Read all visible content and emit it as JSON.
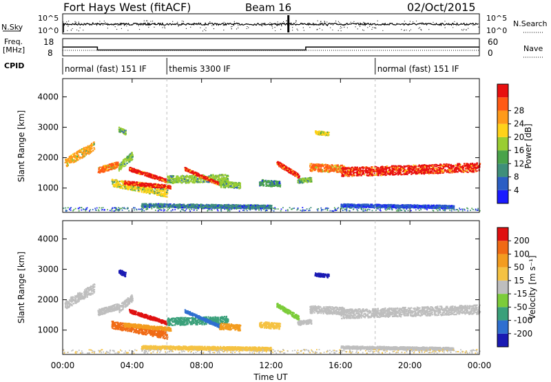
{
  "header": {
    "station": "Fort Hays West (fitACF)",
    "beam": "Beam 16",
    "date": "02/Oct/2015"
  },
  "top_panels": {
    "nsky_label": "N.Sky",
    "nsky_ticks": [
      "10^5",
      "10^0"
    ],
    "nsearch_label": "N.Search",
    "nsearch_ticks": [
      "10^5",
      "10^0"
    ],
    "freq_label_1": "Freq.",
    "freq_label_2": "[MHz]",
    "freq_ticks": [
      "18",
      "8"
    ],
    "nave_label": "Nave",
    "nave_ticks": [
      "60",
      "0"
    ],
    "cpid_label": "CPID",
    "cpid_segments": [
      {
        "label": "normal (fast) 151 IF",
        "start": 0,
        "end": 6
      },
      {
        "label": "themis 3300 IF",
        "start": 6,
        "end": 18
      },
      {
        "label": "normal (fast) 151 IF",
        "start": 18,
        "end": 24
      }
    ],
    "frequency_mhz": [
      {
        "start": 0,
        "end": 2,
        "value": 13.5
      },
      {
        "start": 2,
        "end": 14,
        "value": 10.8
      },
      {
        "start": 14,
        "end": 24,
        "value": 13.5
      }
    ]
  },
  "chart_data": [
    {
      "type": "heatmap",
      "name": "power",
      "ylabel": "Slant Range [km]",
      "yticks": [
        "1000",
        "2000",
        "3000",
        "4000"
      ],
      "ylim": [
        200,
        4600
      ],
      "xlim": [
        0,
        24
      ],
      "colorbar_label": "Power [dB]",
      "colorbar_ticks": [
        "4",
        "8",
        "12",
        "16",
        "20",
        "24",
        "28"
      ],
      "colorbar_colors": [
        "#1a1aff",
        "#2b5ec4",
        "#3f8f7a",
        "#4aa34a",
        "#9acd32",
        "#ffd21a",
        "#ff9a1a",
        "#ff5a14",
        "#e81010"
      ]
    },
    {
      "type": "heatmap",
      "name": "velocity",
      "xlabel": "Time UT",
      "ylabel": "Slant Range [km]",
      "xticks": [
        "00:00",
        "04:00",
        "08:00",
        "12:00",
        "16:00",
        "20:00",
        "00:00"
      ],
      "yticks": [
        "1000",
        "2000",
        "3000",
        "4000"
      ],
      "ylim": [
        200,
        4600
      ],
      "xlim": [
        0,
        24
      ],
      "colorbar_label": "Velocity [m s⁻¹]",
      "colorbar_ticks": [
        "200",
        "100",
        "50",
        "15",
        "-15",
        "-50",
        "-100",
        "-200"
      ],
      "colorbar_colors": [
        "#1a1ab3",
        "#2f6fd0",
        "#3aa07a",
        "#7ccc3a",
        "#bebebe",
        "#f5c242",
        "#f39c1f",
        "#f06a14",
        "#e01010"
      ]
    }
  ]
}
